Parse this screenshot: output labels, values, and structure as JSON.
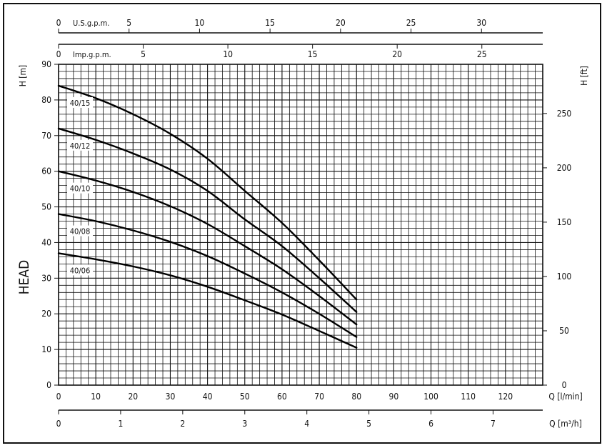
{
  "chart_data": {
    "type": "line",
    "title": "",
    "ylabel": "HEAD",
    "left_axis": {
      "label": "H [m]",
      "range": [
        0,
        90
      ],
      "ticks": [
        0,
        10,
        20,
        30,
        40,
        50,
        60,
        70,
        80,
        90
      ]
    },
    "right_axis": {
      "label": "H [ft]",
      "range": [
        0,
        295.3
      ],
      "ticks": [
        0,
        50,
        100,
        150,
        200,
        250
      ]
    },
    "bottom_axis_lmin": {
      "label": "Q [l/min]",
      "range": [
        0,
        130
      ],
      "ticks": [
        0,
        10,
        20,
        30,
        40,
        50,
        60,
        70,
        80,
        90,
        100,
        110,
        120
      ]
    },
    "bottom_axis_m3h": {
      "label": "Q [m³/h]",
      "range": [
        0,
        7.8
      ],
      "ticks": [
        0,
        1,
        2,
        3,
        4,
        5,
        6,
        7
      ]
    },
    "top_axis_us": {
      "label": "U.S.g.p.m.",
      "range": [
        0,
        34.34
      ],
      "ticks": [
        0,
        5,
        10,
        15,
        20,
        25,
        30
      ]
    },
    "top_axis_imp": {
      "label": "Imp.g.p.m.",
      "range": [
        0,
        28.6
      ],
      "ticks": [
        0,
        5,
        10,
        15,
        20,
        25
      ]
    },
    "grid": true,
    "series": [
      {
        "name": "40/15",
        "x": [
          0,
          10,
          20,
          30,
          40,
          50,
          60,
          70,
          80
        ],
        "values": [
          84,
          80.5,
          76,
          70.5,
          63.5,
          54.5,
          45.5,
          35,
          24
        ]
      },
      {
        "name": "40/12",
        "x": [
          0,
          10,
          20,
          30,
          40,
          50,
          60,
          70,
          80
        ],
        "values": [
          72,
          68.8,
          65,
          60.5,
          54.5,
          46.5,
          39,
          30,
          20.5
        ]
      },
      {
        "name": "40/10",
        "x": [
          0,
          10,
          20,
          30,
          40,
          50,
          60,
          70,
          80
        ],
        "values": [
          60,
          57.4,
          54.2,
          50.2,
          45.2,
          39,
          32.5,
          25,
          17
        ]
      },
      {
        "name": "40/08",
        "x": [
          0,
          10,
          20,
          30,
          40,
          50,
          60,
          70,
          80
        ],
        "values": [
          48,
          46,
          43.4,
          40.2,
          36.2,
          31.3,
          26,
          20,
          13.5
        ]
      },
      {
        "name": "40/06",
        "x": [
          0,
          10,
          20,
          30,
          40,
          50,
          60,
          70,
          80
        ],
        "values": [
          37,
          35.3,
          33.3,
          30.8,
          27.6,
          23.8,
          19.8,
          15.2,
          10.5
        ]
      }
    ]
  }
}
